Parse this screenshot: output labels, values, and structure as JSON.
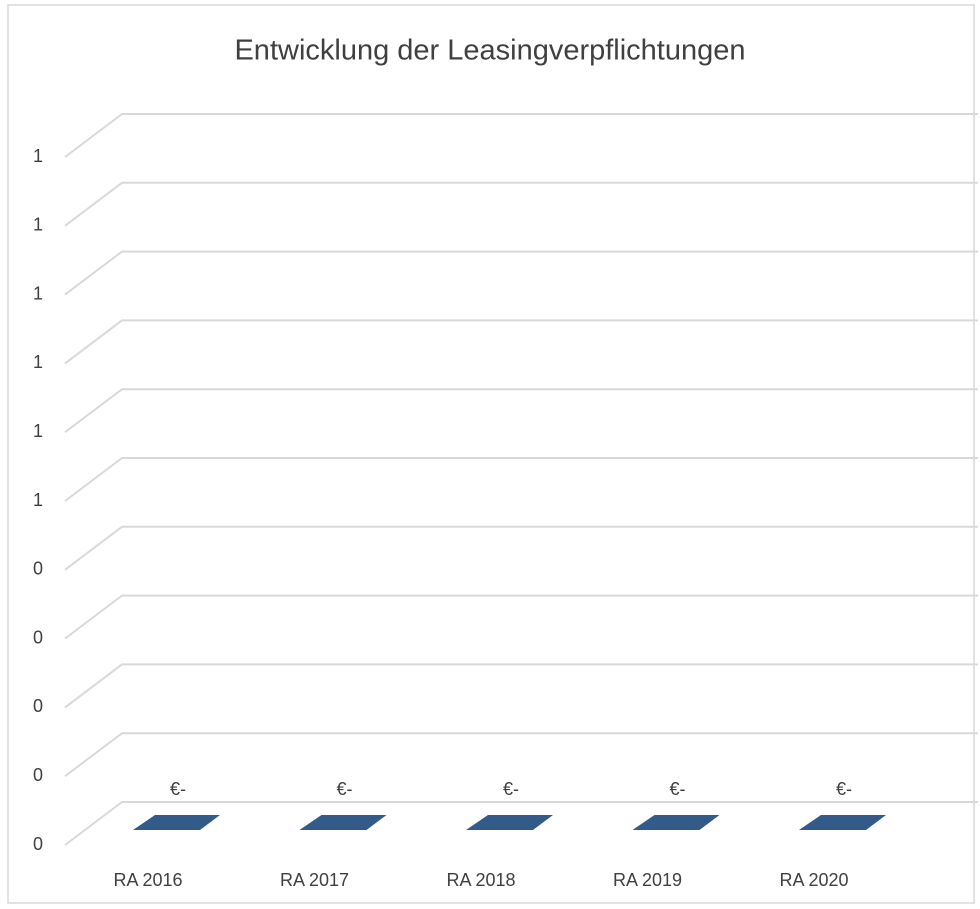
{
  "chart_data": {
    "type": "bar3d",
    "title": "Entwicklung der Leasingverpflichtungen",
    "categories": [
      "RA 2016",
      "RA 2017",
      "RA 2018",
      "RA 2019",
      "RA 2020"
    ],
    "values": [
      0,
      0,
      0,
      0,
      0
    ],
    "value_labels": [
      "€-",
      "€-",
      "€-",
      "€-",
      "€-"
    ],
    "color": "#335b8a",
    "ylim": [
      0,
      1
    ],
    "yticks": [
      {
        "value": 0,
        "label": "0"
      },
      {
        "value": 0.1,
        "label": "0"
      },
      {
        "value": 0.2,
        "label": "0"
      },
      {
        "value": 0.3,
        "label": "0"
      },
      {
        "value": 0.4,
        "label": "0"
      },
      {
        "value": 0.5,
        "label": "1"
      },
      {
        "value": 0.6,
        "label": "1"
      },
      {
        "value": 0.7,
        "label": "1"
      },
      {
        "value": 0.8,
        "label": "1"
      },
      {
        "value": 0.9,
        "label": "1"
      },
      {
        "value": 1,
        "label": "1"
      }
    ],
    "grid": true
  }
}
